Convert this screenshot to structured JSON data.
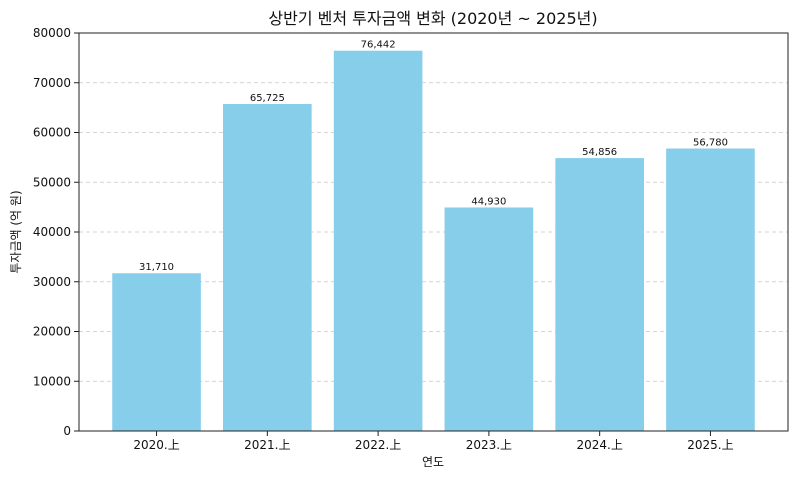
{
  "chart_data": {
    "type": "bar",
    "title": "상반기 벤처 투자금액 변화 (2020년 ~ 2025년)",
    "xlabel": "연도",
    "ylabel": "투자금액 (억 원)",
    "categories": [
      "2020.上",
      "2021.上",
      "2022.上",
      "2023.上",
      "2024.上",
      "2025.上"
    ],
    "values": [
      31710,
      65725,
      76442,
      44930,
      54856,
      56780
    ],
    "value_labels": [
      "31,710",
      "65,725",
      "76,442",
      "44,930",
      "54,856",
      "56,780"
    ],
    "ylim": [
      0,
      80000
    ],
    "yticks": [
      0,
      10000,
      20000,
      30000,
      40000,
      50000,
      60000,
      70000,
      80000
    ],
    "ytick_labels": [
      "0",
      "10000",
      "20000",
      "30000",
      "40000",
      "50000",
      "60000",
      "70000",
      "80000"
    ],
    "grid": true,
    "bar_color": "#87CEEB"
  }
}
